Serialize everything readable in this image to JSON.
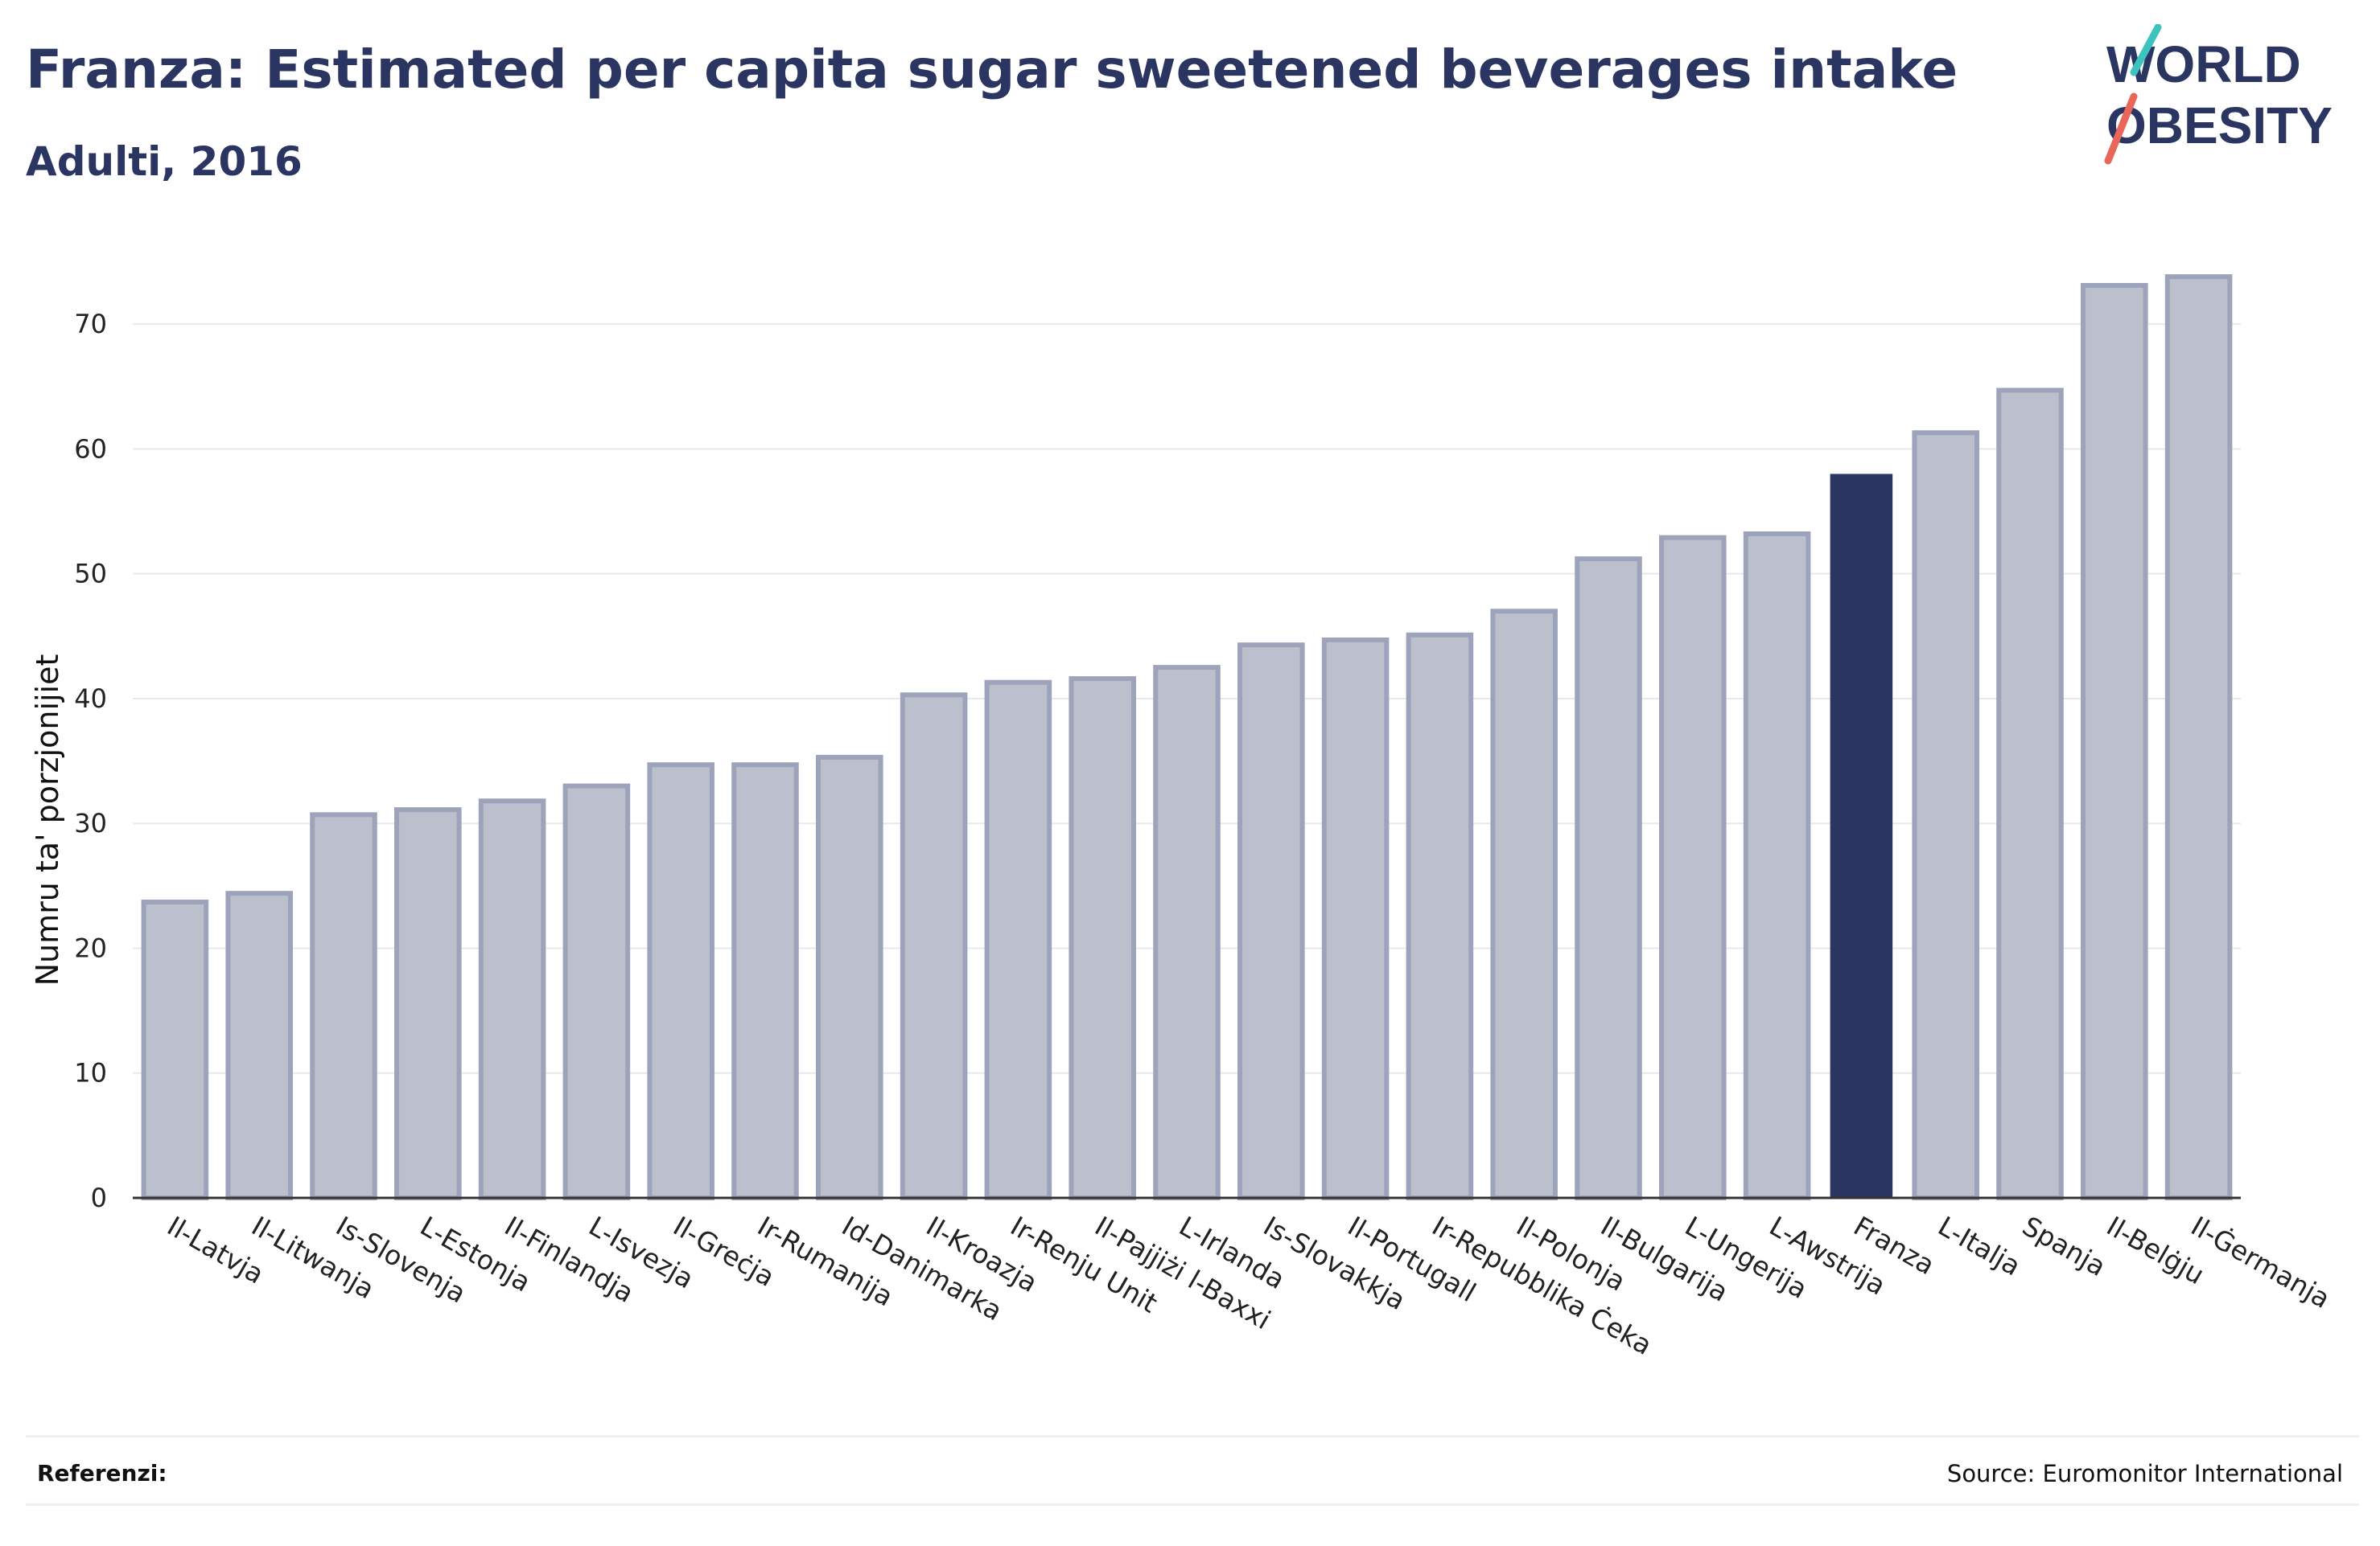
{
  "title": "Franza: Estimated per capita sugar sweetened beverages intake",
  "subtitle": "Adulti, 2016",
  "logo": {
    "line1": "WORLD",
    "line2": "OBESITY"
  },
  "footer": {
    "references_label": "Referenzi:",
    "source": "Source: Euromonitor International"
  },
  "colors": {
    "highlight": "#2b3561",
    "bar_fill": "#bcbfcc",
    "bar_stroke": "#9da3ba",
    "grid": "#e8e9ee",
    "logo_teal": "#3cc3bd",
    "logo_red": "#e8665a"
  },
  "chart_data": {
    "type": "bar",
    "ylabel": "Numru ta' porzjonijiet",
    "xlabel": "",
    "ylim": [
      0,
      76
    ],
    "yticks": [
      0,
      10,
      20,
      30,
      40,
      50,
      60,
      70
    ],
    "grid": true,
    "highlight": "Franza",
    "categories": [
      "Il-Latvja",
      "Il-Litwanja",
      "Is-Slovenja",
      "L-Estonja",
      "Il-Finlandja",
      "L-Isvezja",
      "Il-Greċja",
      "Ir-Rumanija",
      "Id-Danimarka",
      "Il-Kroazja",
      "Ir-Renju Unit",
      "Il-Pajjiżi l-Baxxi",
      "L-Irlanda",
      "Is-Slovakkja",
      "Il-Portugall",
      "Ir-Repubblika Ċeka",
      "Il-Polonja",
      "Il-Bulgarija",
      "L-Ungerija",
      "L-Awstrija",
      "Franza",
      "L-Italja",
      "Spanja",
      "Il-Belġju",
      "Il-Ġermanja"
    ],
    "values": [
      23.7,
      24.4,
      30.7,
      31.1,
      31.8,
      33.0,
      34.7,
      34.7,
      35.3,
      40.3,
      41.3,
      41.6,
      42.5,
      44.3,
      44.7,
      45.1,
      47.0,
      51.2,
      52.9,
      53.2,
      58.0,
      61.3,
      64.7,
      73.1,
      73.8
    ]
  }
}
